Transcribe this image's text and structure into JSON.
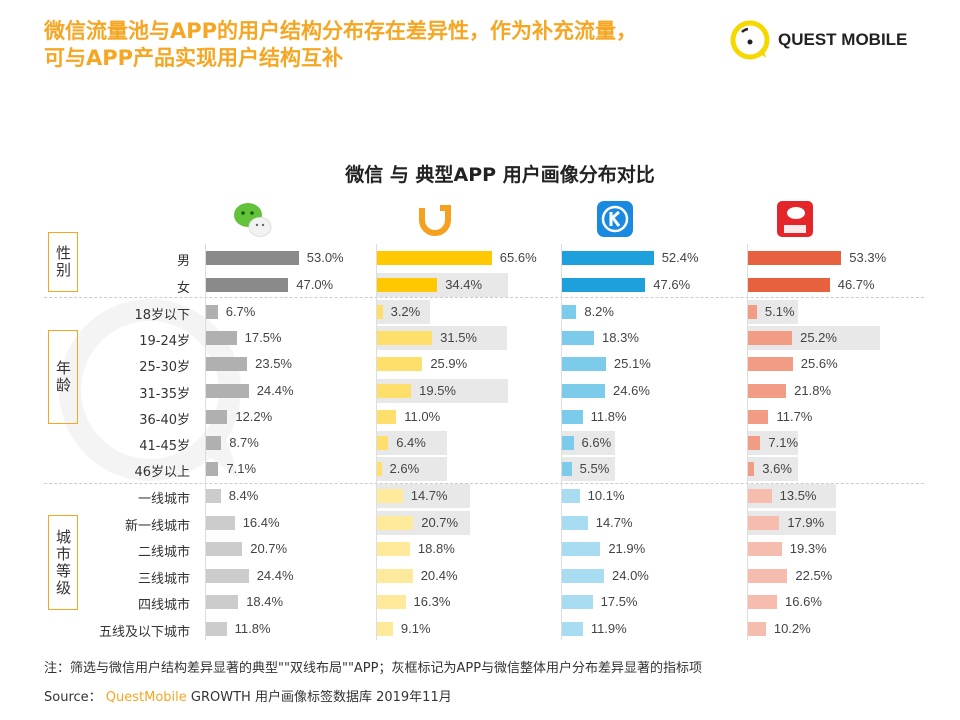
{
  "header": {
    "title_line1": "微信流量池与APP的用户结构分布存在差异性，作为补充流量，",
    "title_line2": "可与APP产品实现用户结构互补",
    "logo_text": "QUEST MOBILE"
  },
  "watermark": "QUESTMOBILE",
  "chart_data": {
    "type": "bar",
    "title": "微信 与 典型APP 用户画像分布对比",
    "groups": [
      {
        "label": "性别",
        "rows": [
          0,
          1
        ]
      },
      {
        "label": "年龄",
        "rows": [
          2,
          3,
          4,
          5,
          6,
          7,
          8
        ]
      },
      {
        "label": "城市等级",
        "rows": [
          9,
          10,
          11,
          12,
          13,
          14
        ]
      }
    ],
    "categories": [
      "男",
      "女",
      "18岁以下",
      "19-24岁",
      "25-30岁",
      "31-35岁",
      "36-40岁",
      "41-45岁",
      "46岁以上",
      "一线城市",
      "新一线城市",
      "二线城市",
      "三线城市",
      "四线城市",
      "五线及以下城市"
    ],
    "series": [
      {
        "icon": "wechat-icon",
        "colors": [
          "#8a8a8a",
          "#b0b0b0",
          "#cccccc"
        ],
        "values": [
          53.0,
          47.0,
          6.7,
          17.5,
          23.5,
          24.4,
          12.2,
          8.7,
          7.1,
          8.4,
          16.4,
          20.7,
          24.4,
          18.4,
          11.8
        ],
        "highlighted": []
      },
      {
        "icon": "didi-icon",
        "colors": [
          "#ffc800",
          "#ffdf6b",
          "#ffe99a"
        ],
        "values": [
          65.6,
          34.4,
          3.2,
          31.5,
          25.9,
          19.5,
          11.0,
          6.4,
          2.6,
          14.7,
          20.7,
          18.8,
          20.4,
          16.3,
          9.1
        ],
        "highlighted": [
          1,
          2,
          3,
          5,
          7,
          8,
          9,
          10
        ]
      },
      {
        "icon": "kugou-icon",
        "colors": [
          "#1ea0dc",
          "#7ccbea",
          "#a8dcf0"
        ],
        "values": [
          52.4,
          47.6,
          8.2,
          18.3,
          25.1,
          24.6,
          11.8,
          6.6,
          5.5,
          10.1,
          14.7,
          21.9,
          24.0,
          17.5,
          11.9
        ],
        "highlighted": [
          7,
          8
        ]
      },
      {
        "icon": "jd-icon",
        "colors": [
          "#e8613f",
          "#f29c86",
          "#f6bcae"
        ],
        "values": [
          53.3,
          46.7,
          5.1,
          25.2,
          25.6,
          21.8,
          11.7,
          7.1,
          3.6,
          13.5,
          17.9,
          19.3,
          22.5,
          16.6,
          10.2
        ],
        "highlighted": [
          2,
          3,
          7,
          8,
          9,
          10
        ]
      }
    ],
    "value_suffix": "%"
  },
  "footer": {
    "note": "注：筛选与微信用户结构差异显著的典型\"\"双线布局\"\"APP；灰框标记为APP与微信整体用户分布差异显著的指标项",
    "source_label": "Source：",
    "source_brand": "QuestMobile",
    "source_rest": " GROWTH 用户画像标签数据库  2019年11月"
  }
}
